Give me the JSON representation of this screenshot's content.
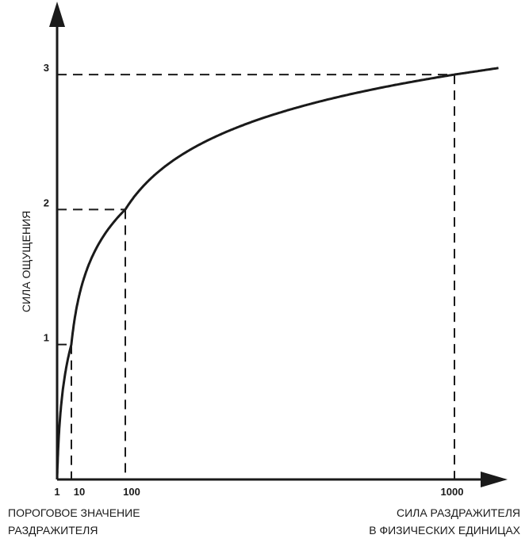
{
  "chart_data": {
    "type": "line",
    "title": "",
    "ylabel": "СИЛА ОЩУЩЕНИЯ",
    "xlabel_left": [
      "ПОРОГОВОЕ ЗНАЧЕНИЕ",
      "РАЗДРАЖИТЕЛЯ"
    ],
    "xlabel_right": [
      "СИЛА РАЗДРАЖИТЕЛЯ",
      "В ФИЗИЧЕСКИХ ЕДИНИЦАХ"
    ],
    "x_ticks": [
      "1",
      "10",
      "100",
      "1000"
    ],
    "y_ticks": [
      "1",
      "2",
      "3"
    ],
    "series": [
      {
        "x": [
          1,
          10,
          100,
          1000,
          1200
        ],
        "y": [
          0,
          1,
          2,
          3,
          3.05
        ]
      }
    ],
    "guides": [
      {
        "x": 10,
        "y": 1
      },
      {
        "x": 100,
        "y": 2
      },
      {
        "x": 1000,
        "y": 3
      }
    ],
    "xlim": [
      1,
      1200
    ],
    "ylim": [
      0,
      3.5
    ],
    "grid": false,
    "line_color": "#1a1a1a"
  }
}
